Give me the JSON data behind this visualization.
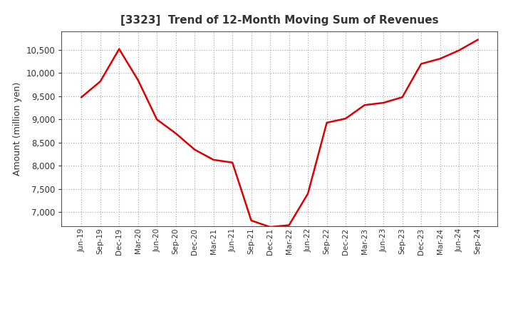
{
  "title": "[3323]  Trend of 12-Month Moving Sum of Revenues",
  "ylabel": "Amount (million yen)",
  "line_color": "#dd0000",
  "background_color": "#ffffff",
  "plot_bg_color": "#ffffff",
  "grid_color": "#999999",
  "title_color": "#333333",
  "tick_color": "#333333",
  "spine_color": "#555555",
  "ylim": [
    6700,
    10900
  ],
  "yticks": [
    7000,
    7500,
    8000,
    8500,
    9000,
    9500,
    10000,
    10500
  ],
  "x_labels": [
    "Jun-19",
    "Sep-19",
    "Dec-19",
    "Mar-20",
    "Jun-20",
    "Sep-20",
    "Dec-20",
    "Mar-21",
    "Jun-21",
    "Sep-21",
    "Dec-21",
    "Mar-22",
    "Jun-22",
    "Sep-22",
    "Dec-22",
    "Mar-23",
    "Jun-23",
    "Sep-23",
    "Dec-23",
    "Mar-24",
    "Jun-24",
    "Sep-24"
  ],
  "y_values": [
    9480,
    9820,
    10520,
    9850,
    9000,
    8700,
    8350,
    8130,
    8070,
    6820,
    6680,
    6720,
    7400,
    8930,
    9020,
    9310,
    9360,
    9480,
    10200,
    10310,
    10490,
    10720
  ]
}
